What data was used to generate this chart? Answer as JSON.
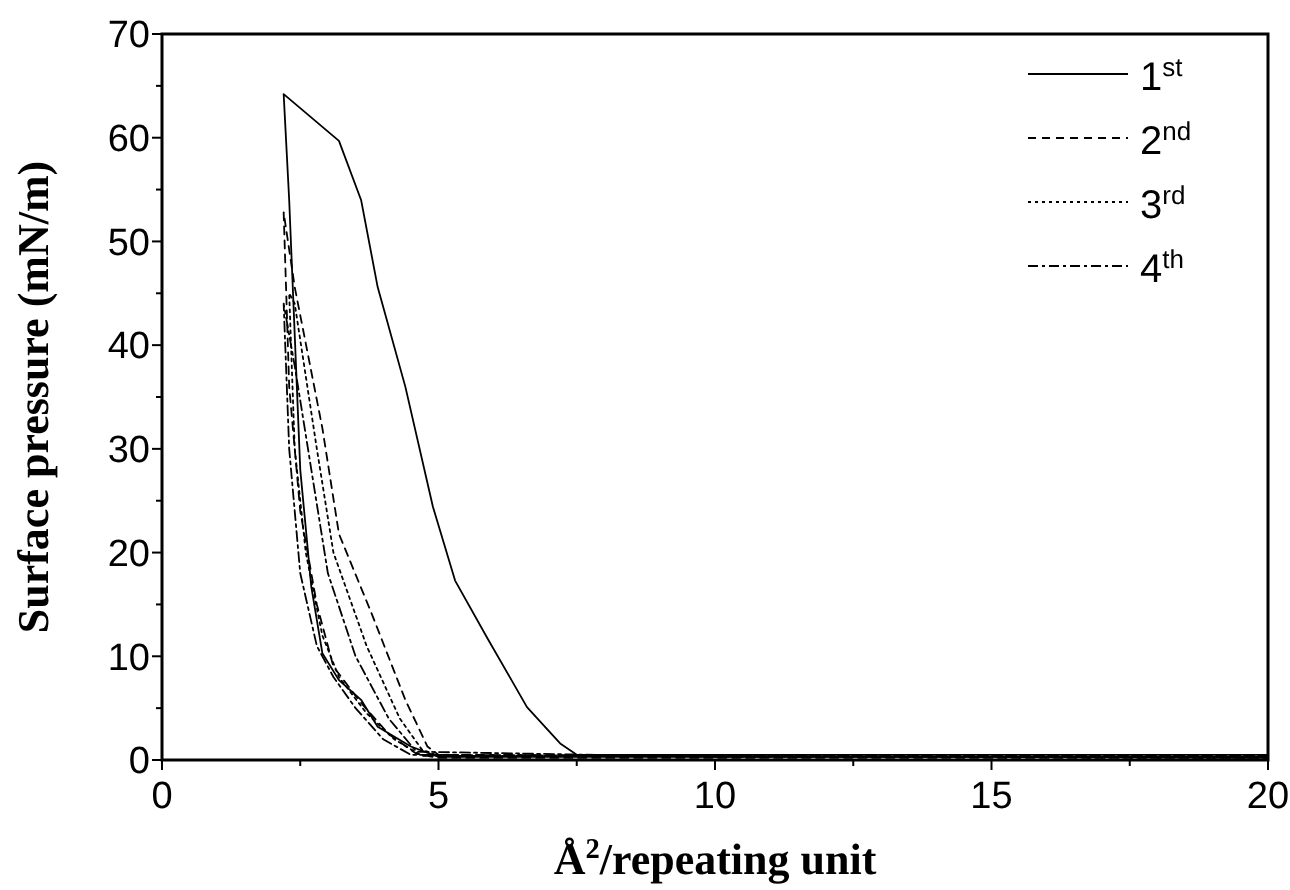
{
  "chart_data": {
    "type": "line",
    "xlabel": "Å$^{2}$/repeating unit",
    "ylabel": "Surface pressure (mN/m)",
    "xlim": [
      0,
      20
    ],
    "ylim": [
      0,
      70
    ],
    "xticks": [
      0,
      {
        "value": 2.5,
        "label": null
      },
      5,
      {
        "value": 7.5,
        "label": null
      },
      10,
      {
        "value": 12.5,
        "label": null
      },
      15,
      {
        "value": 17.5,
        "label": null
      },
      20
    ],
    "yticks": [
      0,
      {
        "value": 5,
        "label": null
      },
      10,
      {
        "value": 15,
        "label": null
      },
      20,
      {
        "value": 25,
        "label": null
      },
      30,
      {
        "value": 35,
        "label": null
      },
      40,
      {
        "value": 45,
        "label": null
      },
      50,
      {
        "value": 55,
        "label": null
      },
      60,
      {
        "value": 65,
        "label": null
      },
      70
    ],
    "grid": false,
    "legend": "top right",
    "marker": "none",
    "series": [
      {
        "name": "1$^{st}$",
        "color": "#000000",
        "line_style": "solid",
        "x": [
          20,
          15,
          10,
          7.5,
          7.2,
          6.6,
          5.9,
          5.3,
          4.9,
          4.4,
          3.9,
          3.6,
          3.2,
          2.2,
          2.3,
          2.5,
          2.7,
          2.9,
          3.2,
          3.6,
          3.9,
          4.5,
          5,
          10,
          20
        ],
        "values": [
          0.5,
          0.5,
          0.5,
          0.5,
          1.6,
          5.1,
          11.6,
          17.3,
          24.4,
          36,
          45.6,
          54,
          59.7,
          64.2,
          54,
          28,
          16.7,
          10.3,
          7.7,
          5.8,
          3.2,
          1.3,
          0.3,
          0.3,
          0.3
        ]
      },
      {
        "name": "2$^{nd}$",
        "color": "#000000",
        "line_style": "dashed",
        "x": [
          20,
          10,
          5,
          4.8,
          4.4,
          3.8,
          3.2,
          2.9,
          2.4,
          2.2,
          2.3,
          2.5,
          2.8,
          3.1,
          3.6,
          4.1,
          4.6,
          5,
          20
        ],
        "values": [
          0.4,
          0.4,
          0.5,
          1.3,
          5.8,
          14,
          21.8,
          32,
          45.6,
          52.8,
          36,
          24,
          15,
          9,
          5.5,
          2.5,
          0.6,
          0.2,
          0.2
        ]
      },
      {
        "name": "3$^{rd}$",
        "color": "#000000",
        "line_style": "dotted",
        "x": [
          20,
          10,
          5,
          4.7,
          4.3,
          3.7,
          3.1,
          2.8,
          2.4,
          2.3,
          2.4,
          2.6,
          2.9,
          3.2,
          3.7,
          4.2,
          4.7,
          20
        ],
        "values": [
          0.4,
          0.4,
          0.4,
          1,
          4,
          11,
          20,
          30,
          44,
          45,
          30,
          20,
          12,
          8,
          4.5,
          2,
          0.4,
          0.2
        ]
      },
      {
        "name": "4$^{th}$",
        "color": "#000000",
        "line_style": "dashdot",
        "x": [
          20,
          10,
          4.6,
          4.1,
          3.5,
          3,
          2.7,
          2.4,
          2.2,
          2.3,
          2.5,
          2.8,
          3.1,
          3.5,
          4,
          4.5,
          20
        ],
        "values": [
          0.3,
          0.3,
          0.8,
          4,
          10,
          18,
          28,
          38,
          44,
          30,
          18,
          11,
          8,
          5,
          2,
          0.5,
          0.2
        ]
      }
    ]
  }
}
